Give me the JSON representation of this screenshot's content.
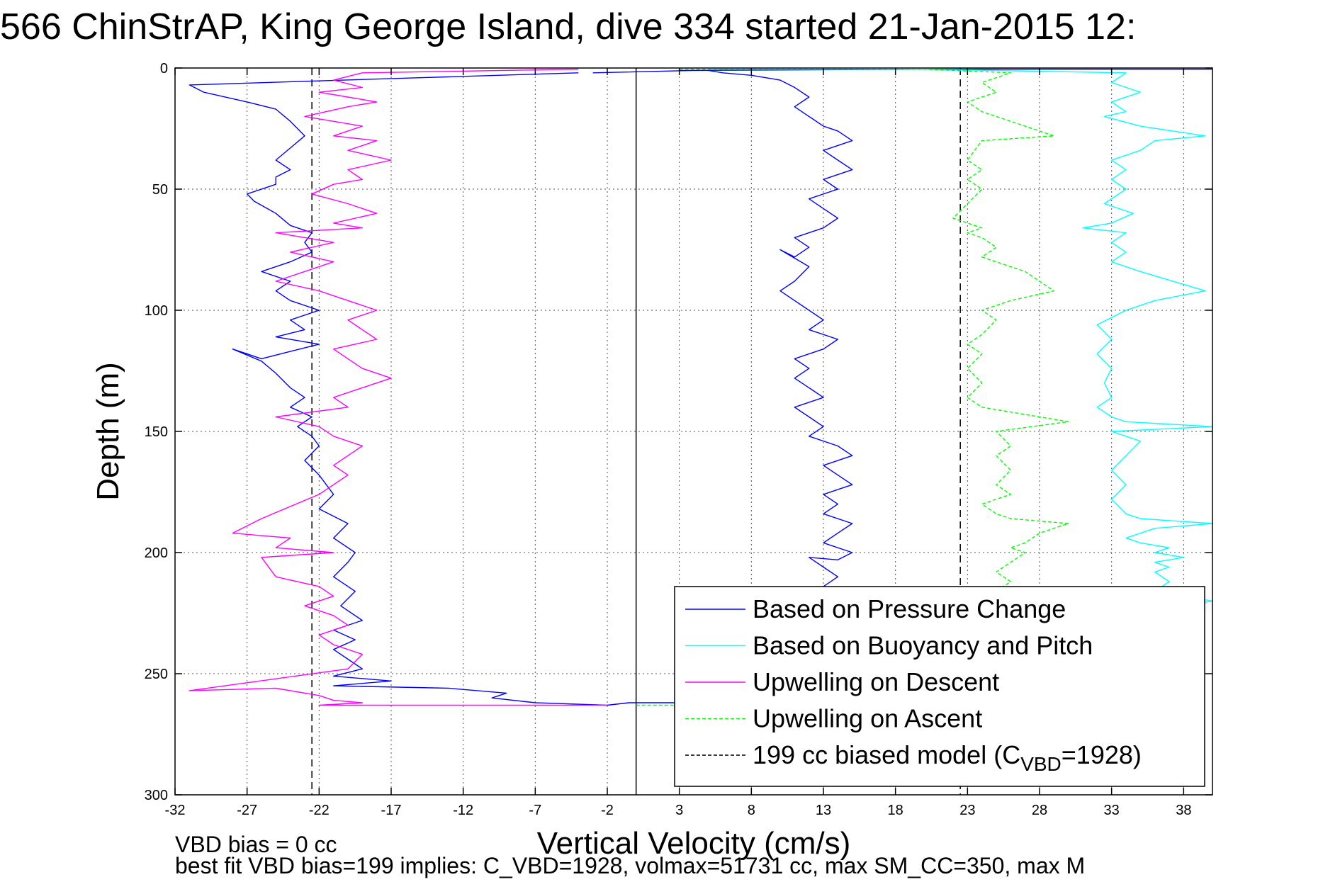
{
  "title": "566 ChinStrAP, King George Island, dive 334 started 21-Jan-2015 12:",
  "notes": {
    "line1": "VBD bias = 0 cc",
    "line2": "best fit VBD bias=199 implies: C_VBD=1928, volmax=51731 cc, max SM_CC=350, max M"
  },
  "chart_data": {
    "type": "line",
    "title": "566 ChinStrAP, King George Island, dive 334 started 21-Jan-2015 12:",
    "xlabel": "Vertical Velocity (cm/s)",
    "ylabel": "Depth (m)",
    "xlim": [
      -32,
      40
    ],
    "ylim": [
      300,
      0
    ],
    "y_reversed": true,
    "grid": true,
    "xticks": [
      -32,
      -27,
      -22,
      -17,
      -12,
      -7,
      -2,
      3,
      8,
      13,
      18,
      23,
      28,
      33,
      38
    ],
    "yticks": [
      0,
      50,
      100,
      150,
      200,
      250,
      300
    ],
    "legend_position": "bottom-right",
    "reference_lines": [
      {
        "orientation": "vertical",
        "x": 0,
        "style": "solid",
        "color": "#000000"
      },
      {
        "orientation": "vertical",
        "x": -22.5,
        "style": "dashed",
        "color": "#000000"
      },
      {
        "orientation": "vertical",
        "x": 22.5,
        "style": "dashed",
        "color": "#000000"
      }
    ],
    "series": [
      {
        "name": "Based on Pressure Change",
        "label_main": "Based on Pressure Change",
        "color": "#0000ff",
        "dash": "none",
        "segments": [
          {
            "x": [
              -4,
              -15,
              -31,
              -30,
              -27,
              -25,
              -24,
              -23,
              -24,
              -25,
              -24,
              -25,
              -25,
              -27,
              -26.5,
              -25,
              -24,
              -22.5,
              -23,
              -22.5,
              -24,
              -26,
              -24,
              -25,
              -24,
              -22,
              -24,
              -23,
              -25,
              -22,
              -24,
              -26,
              -28,
              -26,
              -25,
              -24,
              -23,
              -24,
              -22.5,
              -23.5,
              -22.5,
              -22,
              -23,
              -22,
              -21,
              -22,
              -20,
              -21,
              -19.5,
              -20,
              -21,
              -19.5,
              -20.5,
              -19,
              -21,
              -19.5,
              -21,
              -20,
              -19,
              -21,
              -17,
              -21,
              -13,
              -9,
              -10,
              -7,
              -2
            ],
            "y": [
              2,
              4,
              7,
              10,
              14,
              17,
              22,
              28,
              33,
              38,
              42,
              45,
              48,
              52,
              55,
              60,
              65,
              68,
              72,
              76,
              80,
              84,
              88,
              92,
              96,
              100,
              104,
              108,
              111,
              114,
              117,
              120,
              116,
              121,
              126,
              132,
              136,
              140,
              144,
              148,
              152,
              156,
              162,
              168,
              176,
              182,
              188,
              194,
              200,
              204,
              210,
              216,
              222,
              228,
              232,
              236,
              240,
              244,
              248,
              251,
              253,
              255,
              256,
              258,
              260,
              262,
              263
            ]
          },
          {
            "x": [
              -2,
              -0.5,
              1,
              3
            ],
            "y": [
              263,
              262,
              262,
              262
            ]
          },
          {
            "x": [
              -3,
              4,
              20,
              40
            ],
            "y": [
              2,
              1,
              0.5,
              0.5
            ]
          },
          {
            "x": [
              3,
              5,
              6,
              8,
              10,
              11,
              12,
              11,
              12,
              13,
              14,
              15,
              13,
              14,
              15,
              13,
              14,
              12,
              13,
              14,
              13,
              11,
              12,
              11,
              10,
              12,
              11,
              10,
              11,
              12,
              13,
              12,
              14,
              13,
              11,
              12,
              11,
              12,
              13,
              11,
              12,
              13,
              12,
              14,
              15,
              13,
              14,
              15,
              13,
              14,
              13,
              15,
              14,
              13,
              15,
              14,
              12,
              13,
              14,
              13
            ],
            "y": [
              1,
              1,
              2,
              3,
              5,
              8,
              12,
              16,
              20,
              24,
              26,
              30,
              34,
              38,
              42,
              46,
              50,
              54,
              58,
              62,
              66,
              70,
              74,
              78,
              75,
              82,
              88,
              92,
              96,
              100,
              104,
              108,
              112,
              116,
              120,
              124,
              128,
              132,
              136,
              140,
              144,
              148,
              152,
              156,
              160,
              164,
              168,
              172,
              176,
              180,
              184,
              188,
              192,
              196,
              200,
              203,
              202,
              206,
              210,
              214
            ]
          }
        ]
      },
      {
        "name": "Based on Buoyancy and Pitch",
        "label_main": "Based on Buoyancy and Pitch",
        "color": "#00ffff",
        "dash": "none",
        "segments": [
          {
            "x": [
              5,
              20,
              34,
              33,
              35,
              33,
              34,
              32.5,
              35,
              39.5,
              36,
              35,
              33,
              34,
              33,
              34,
              32.5,
              34.5,
              33,
              31,
              34,
              33,
              34,
              33,
              35,
              39.5,
              36,
              34,
              32,
              33,
              32,
              33,
              32.5,
              33,
              32,
              33,
              34,
              40,
              33,
              35,
              34,
              33,
              34,
              33,
              34,
              35,
              40,
              36,
              34,
              35,
              37,
              36,
              38,
              36,
              37,
              36,
              37,
              36,
              40,
              36
            ],
            "y": [
              0.5,
              0.5,
              2,
              6,
              10,
              14,
              18,
              20,
              24,
              28,
              30,
              34,
              38,
              42,
              46,
              50,
              56,
              60,
              64,
              66,
              68,
              72,
              76,
              80,
              84,
              92,
              96,
              100,
              106,
              112,
              118,
              124,
              130,
              136,
              140,
              144,
              146,
              148,
              150,
              154,
              160,
              166,
              172,
              178,
              184,
              186,
              188,
              190,
              194,
              196,
              198,
              200,
              202,
              204,
              206,
              208,
              212,
              216,
              220,
              224
            ]
          }
        ]
      },
      {
        "name": "Upwelling on Descent",
        "label_main": "Upwelling on Descent",
        "color": "#ff00ff",
        "dash": "none",
        "segments": [
          {
            "x": [
              -4,
              -19,
              -21,
              -19,
              -22,
              -20,
              -18,
              -20,
              -23,
              -19,
              -21,
              -18,
              -20,
              -17,
              -20,
              -19,
              -21,
              -22.5,
              -20,
              -18,
              -21,
              -19,
              -25,
              -21,
              -24,
              -21,
              -23,
              -25,
              -22,
              -20,
              -18,
              -20,
              -19,
              -18,
              -21,
              -20,
              -19,
              -17,
              -19,
              -21,
              -20,
              -25,
              -22,
              -21,
              -19,
              -20,
              -21,
              -20,
              -21,
              -22,
              -26,
              -28,
              -24,
              -25,
              -21,
              -26,
              -25,
              -22,
              -21,
              -23,
              -21,
              -20,
              -22,
              -21,
              -19,
              -20,
              -31,
              -25,
              -22,
              -21,
              -19,
              -22,
              -2
            ],
            "y": [
              0.5,
              2,
              5,
              8,
              10,
              12,
              14,
              16,
              20,
              24,
              28,
              30,
              34,
              38,
              42,
              46,
              48,
              52,
              56,
              60,
              64,
              66,
              68,
              72,
              76,
              80,
              84,
              88,
              92,
              96,
              100,
              104,
              108,
              112,
              116,
              120,
              124,
              128,
              132,
              136,
              140,
              144,
              148,
              152,
              156,
              160,
              164,
              168,
              172,
              176,
              186,
              192,
              194,
              198,
              200,
              202,
              210,
              214,
              218,
              222,
              226,
              230,
              234,
              238,
              242,
              248,
              257,
              256,
              259,
              261,
              262,
              263,
              263
            ]
          }
        ]
      },
      {
        "name": "Upwelling on Ascent",
        "label_main": "Upwelling on Ascent",
        "color": "#00ff00",
        "dash": "dashed",
        "segments": [
          {
            "x": [
              3,
              20,
              26,
              24,
              25,
              23,
              24,
              25,
              26,
              27,
              28,
              29,
              24,
              23.5,
              23,
              24,
              23,
              24,
              23,
              22,
              24,
              23,
              24,
              25,
              24,
              27,
              28,
              29,
              26,
              24,
              25,
              24,
              23,
              24,
              23,
              24,
              23,
              24,
              30,
              25,
              26,
              25,
              26,
              25,
              26,
              24,
              25,
              26,
              30,
              28,
              27,
              26,
              27,
              26,
              25,
              26,
              25
            ],
            "y": [
              0.5,
              0.5,
              2,
              6,
              10,
              14,
              18,
              20,
              22,
              24,
              26,
              28,
              30,
              34,
              38,
              42,
              46,
              50,
              56,
              62,
              66,
              68,
              70,
              74,
              78,
              84,
              88,
              92,
              96,
              100,
              104,
              110,
              114,
              118,
              124,
              130,
              136,
              140,
              146,
              150,
              156,
              160,
              166,
              172,
              176,
              180,
              184,
              186,
              188,
              192,
              196,
              198,
              200,
              204,
              208,
              212,
              216
            ]
          },
          {
            "x": [
              0,
              3
            ],
            "y": [
              263,
              263
            ]
          }
        ]
      },
      {
        "name": "199 cc biased model (C_VBD=1928)",
        "label_main": "199 cc biased model (C",
        "label_sub": "VBD",
        "label_end": "=1928)",
        "color": "#000000",
        "dash": "dashed",
        "segments": []
      }
    ]
  }
}
